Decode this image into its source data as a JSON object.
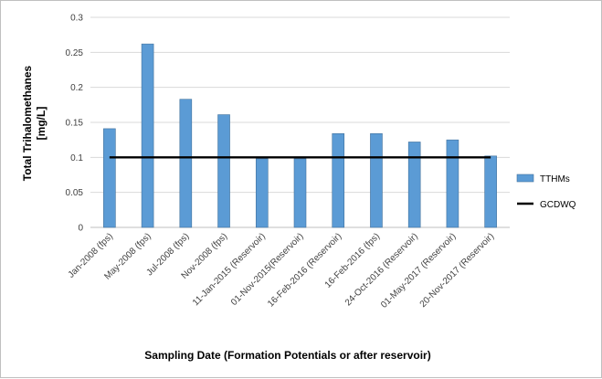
{
  "chart_data": {
    "type": "bar",
    "categories": [
      "Jan-2008 (fps)",
      "May-2008 (fps)",
      "Jul-2008 (fps)",
      "Nov-2008 (fps)",
      "11-Jan-2015 (Reservoir)",
      "01-Nov-2015(Reservoir)",
      "16-Feb-2016 (Reservoir)",
      "16-Feb-2016 (fps)",
      "24-Oct-2016 (Reservoir)",
      "01-May-2017 (Reservoir)",
      "20-Nov-2017 (Reservoir)"
    ],
    "series": [
      {
        "name": "TTHMs",
        "type": "bar",
        "color": "#5b9bd5",
        "values": [
          0.141,
          0.262,
          0.183,
          0.161,
          0.098,
          0.098,
          0.134,
          0.134,
          0.122,
          0.125,
          0.102
        ]
      },
      {
        "name": "GCDWQ",
        "type": "line",
        "color": "#000000",
        "values": [
          0.1,
          0.1,
          0.1,
          0.1,
          0.1,
          0.1,
          0.1,
          0.1,
          0.1,
          0.1,
          0.1
        ]
      }
    ],
    "ylim": [
      0,
      0.3
    ],
    "yticks": [
      "0",
      "0.05",
      "0.1",
      "0.15",
      "0.2",
      "0.25",
      "0.3"
    ],
    "ytick_values": [
      0,
      0.05,
      0.1,
      0.15,
      0.2,
      0.25,
      0.3
    ],
    "xlabel": "Sampling Date (Formation Potentials or after reservoir)",
    "ylabel_line1": "Total Trihalomethanes",
    "ylabel_line2": "[mg/L]",
    "legend_position": "right",
    "grid": true
  }
}
